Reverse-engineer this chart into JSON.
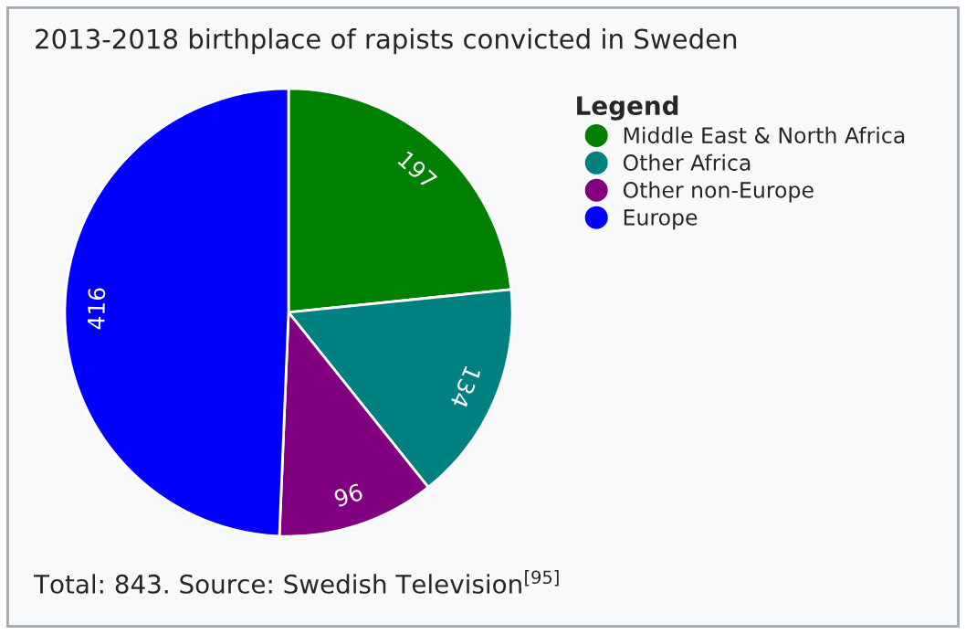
{
  "chart_data": {
    "type": "pie",
    "title": "2013-2018 birthplace of rapists convicted in Sweden",
    "legend_title": "Legend",
    "categories": [
      "Middle East & North Africa",
      "Other Africa",
      "Other non-Europe",
      "Europe"
    ],
    "values": [
      197,
      134,
      96,
      416
    ],
    "colors": [
      "#008000",
      "#008080",
      "#800080",
      "#0000ff"
    ],
    "data_labels": true,
    "legend": "top right",
    "annotations": [
      "Total: 843. Source: Swedish Television$^{[95]}$"
    ]
  }
}
